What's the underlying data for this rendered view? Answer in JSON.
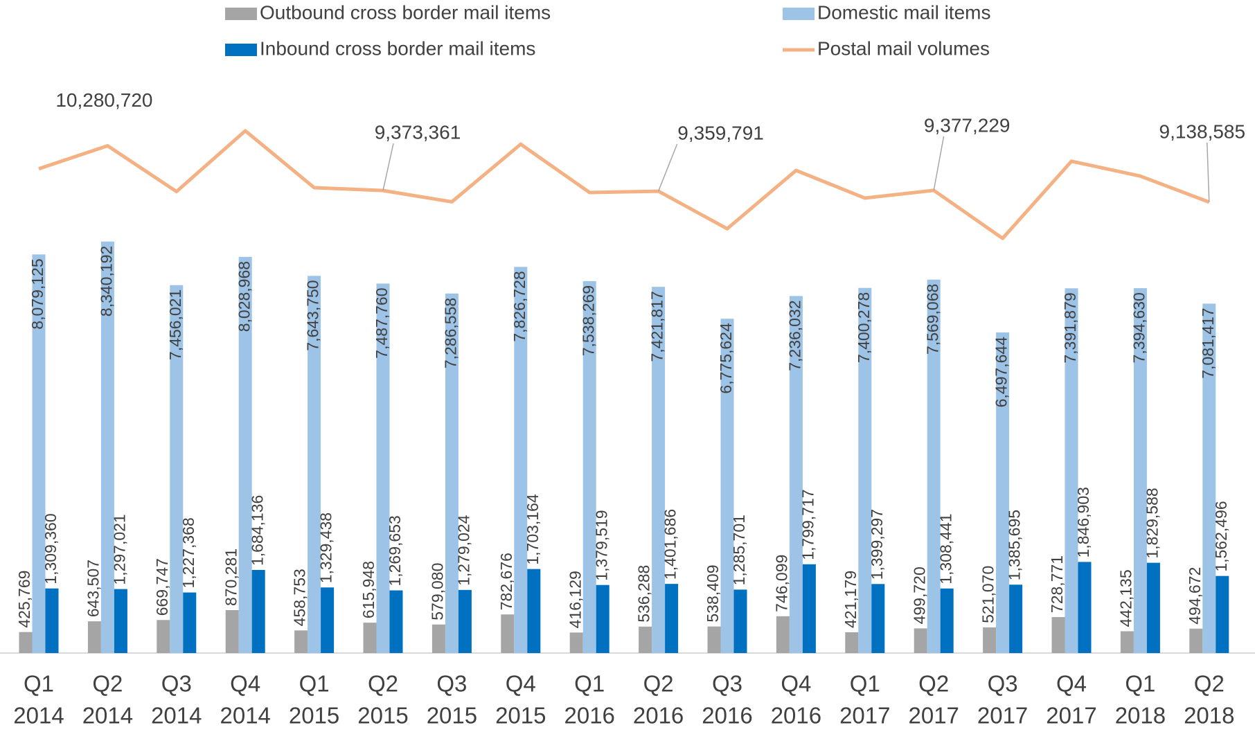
{
  "chart_data": {
    "type": "bar_line",
    "categories": [
      [
        "Q1",
        "2014"
      ],
      [
        "Q2",
        "2014"
      ],
      [
        "Q3",
        "2014"
      ],
      [
        "Q4",
        "2014"
      ],
      [
        "Q1",
        "2015"
      ],
      [
        "Q2",
        "2015"
      ],
      [
        "Q3",
        "2015"
      ],
      [
        "Q4",
        "2015"
      ],
      [
        "Q1",
        "2016"
      ],
      [
        "Q2",
        "2016"
      ],
      [
        "Q3",
        "2016"
      ],
      [
        "Q4",
        "2016"
      ],
      [
        "Q1",
        "2017"
      ],
      [
        "Q2",
        "2017"
      ],
      [
        "Q3",
        "2017"
      ],
      [
        "Q4",
        "2017"
      ],
      [
        "Q1",
        "2018"
      ],
      [
        "Q2",
        "2018"
      ]
    ],
    "series": [
      {
        "name": "Outbound cross border mail items",
        "color": "#a5a5a5",
        "type": "bar",
        "values": [
          425769,
          643507,
          669747,
          870281,
          458753,
          615948,
          579080,
          782676,
          416129,
          536288,
          538409,
          746099,
          421179,
          499720,
          521070,
          728771,
          442135,
          494672
        ],
        "value_labels": [
          "425,769",
          "643,507",
          "669,747",
          "870,281",
          "458,753",
          "615,948",
          "579,080",
          "782,676",
          "416,129",
          "536,288",
          "538,409",
          "746,099",
          "421,179",
          "499,720",
          "521,070",
          "728,771",
          "442,135",
          "494,672"
        ]
      },
      {
        "name": "Domestic mail items",
        "color": "#9dc3e6",
        "type": "bar",
        "values": [
          8079125,
          8340192,
          7456021,
          8028968,
          7643750,
          7487760,
          7286558,
          7826728,
          7538269,
          7421817,
          6775624,
          7236032,
          7400278,
          7569068,
          6497644,
          7391879,
          7394630,
          7081417
        ],
        "value_labels": [
          "8,079,125",
          "8,340,192",
          "7,456,021",
          "8,028,968",
          "7,643,750",
          "7,487,760",
          "7,286,558",
          "7,826,728",
          "7,538,269",
          "7,421,817",
          "6,775,624",
          "7,236,032",
          "7,400,278",
          "7,569,068",
          "6,497,644",
          "7,391,879",
          "7,394,630",
          "7,081,417"
        ]
      },
      {
        "name": "Inbound cross border mail items",
        "color": "#0070c0",
        "type": "bar",
        "values": [
          1309360,
          1297021,
          1227368,
          1684136,
          1329438,
          1269653,
          1279024,
          1703164,
          1379519,
          1401686,
          1285701,
          1799717,
          1399297,
          1308441,
          1385695,
          1846903,
          1829588,
          1562496
        ],
        "value_labels": [
          "1,309,360",
          "1,297,021",
          "1,227,368",
          "1,684,136",
          "1,329,438",
          "1,269,653",
          "1,279,024",
          "1,703,164",
          "1,379,519",
          "1,401,686",
          "1,285,701",
          "1,799,717",
          "1,399,297",
          "1,308,441",
          "1,385,695",
          "1,846,903",
          "1,829,588",
          "1,562,496"
        ]
      },
      {
        "name": "Postal mail volumes",
        "color": "#f4b183",
        "type": "line",
        "values": [
          9814254,
          10280720,
          9353136,
          10583385,
          9431941,
          9373361,
          9144662,
          10312568,
          9333917,
          9359791,
          8599734,
          9781848,
          9220754,
          9377229,
          8404409,
          9967553,
          9666353,
          9138585
        ],
        "value_labels": [
          null,
          "10,280,720",
          null,
          null,
          null,
          "9,373,361",
          null,
          null,
          null,
          "9,359,791",
          null,
          null,
          null,
          "9,377,229",
          null,
          null,
          null,
          "9,138,585"
        ]
      }
    ],
    "ylim": [
      0,
      12000000
    ]
  }
}
